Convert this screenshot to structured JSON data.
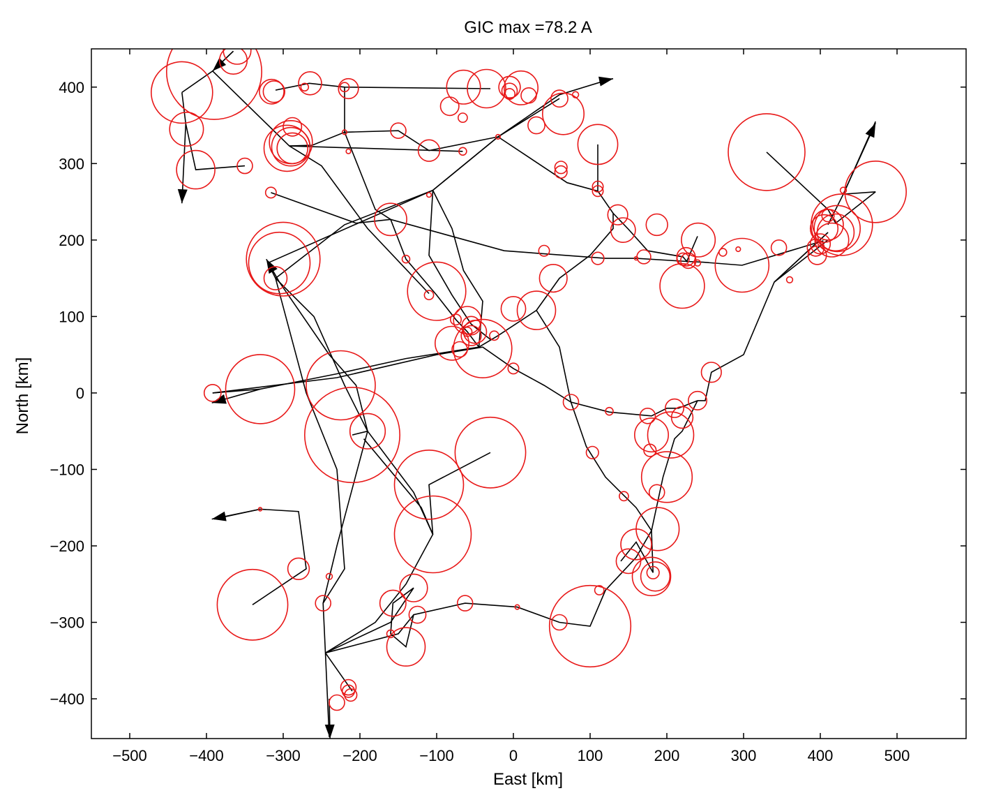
{
  "chart_data": {
    "type": "scatter",
    "title": "GIC max =78.2 A",
    "xlabel": "East [km]",
    "ylabel": "North [km]",
    "xlim": [
      -550,
      590
    ],
    "ylim": [
      -452,
      450
    ],
    "xticks": [
      -500,
      -400,
      -300,
      -200,
      -100,
      0,
      100,
      200,
      300,
      400,
      500
    ],
    "yticks": [
      -400,
      -300,
      -200,
      -100,
      0,
      100,
      200,
      300,
      400
    ],
    "grid": false,
    "line_color": "#000000",
    "circle_color": "#e81818",
    "lines": [
      [
        [
          -432,
          393
        ],
        [
          -427,
          352
        ],
        [
          -414,
          292
        ],
        [
          -350,
          297
        ]
      ],
      [
        [
          -432,
          393
        ],
        [
          -392,
          421
        ],
        [
          -365,
          447
        ]
      ],
      [
        [
          -392,
          421
        ],
        [
          -292,
          323
        ],
        [
          -262,
          324
        ],
        [
          -220,
          341
        ],
        [
          -150,
          343
        ],
        [
          -110,
          317
        ],
        [
          -20,
          335
        ]
      ],
      [
        [
          -292,
          323
        ],
        [
          -66,
          316
        ]
      ],
      [
        [
          -292,
          323
        ],
        [
          -250,
          297
        ],
        [
          -190,
          215
        ],
        [
          -110,
          130
        ]
      ],
      [
        [
          -310,
          396
        ],
        [
          -266,
          405
        ],
        [
          -220,
          400
        ],
        [
          -30,
          398
        ]
      ],
      [
        [
          -220,
          400
        ],
        [
          -220,
          341
        ],
        [
          -180,
          240
        ],
        [
          -160,
          227
        ],
        [
          -140,
          175
        ],
        [
          -100,
          128
        ],
        [
          -75,
          96
        ],
        [
          -60,
          80
        ],
        [
          -45,
          60
        ]
      ],
      [
        [
          -316,
          262
        ],
        [
          -205,
          222
        ],
        [
          -160,
          227
        ],
        [
          -12,
          186
        ],
        [
          120,
          176
        ],
        [
          160,
          176
        ],
        [
          226,
          172
        ],
        [
          247,
          171
        ],
        [
          298,
          167
        ],
        [
          404,
          199
        ]
      ],
      [
        [
          -320,
          170
        ],
        [
          -105,
          265
        ],
        [
          -20,
          335
        ],
        [
          60,
          385
        ]
      ],
      [
        [
          -310,
          150
        ],
        [
          -220,
          220
        ],
        [
          -105,
          265
        ],
        [
          -20,
          335
        ],
        [
          20,
          360
        ]
      ],
      [
        [
          -20,
          335
        ],
        [
          70,
          275
        ],
        [
          110,
          264
        ],
        [
          130,
          235
        ],
        [
          150,
          214
        ],
        [
          175,
          186
        ],
        [
          221,
          178
        ],
        [
          226,
          172
        ],
        [
          240,
          205
        ]
      ],
      [
        [
          -20,
          335
        ],
        [
          60,
          390
        ],
        [
          125,
          410
        ]
      ],
      [
        [
          -105,
          265
        ],
        [
          -110,
          180
        ],
        [
          -80,
          128
        ],
        [
          -55,
          90
        ],
        [
          -30,
          70
        ]
      ],
      [
        [
          -105,
          265
        ],
        [
          -80,
          215
        ],
        [
          -65,
          160
        ],
        [
          -40,
          120
        ],
        [
          -45,
          60
        ]
      ],
      [
        [
          -320,
          170
        ],
        [
          -310,
          150
        ],
        [
          -260,
          100
        ],
        [
          -220,
          10
        ],
        [
          -190,
          -50
        ]
      ],
      [
        [
          -305,
          145
        ],
        [
          -240,
          50
        ],
        [
          -205,
          10
        ],
        [
          -190,
          -50
        ],
        [
          -130,
          -130
        ],
        [
          -105,
          -185
        ]
      ],
      [
        [
          -392,
          0
        ],
        [
          -330,
          5
        ],
        [
          -230,
          25
        ],
        [
          -140,
          45
        ],
        [
          -45,
          60
        ]
      ],
      [
        [
          -392,
          0
        ],
        [
          -230,
          20
        ],
        [
          -100,
          50
        ],
        [
          -40,
          60
        ],
        [
          0,
          32
        ],
        [
          40,
          10
        ],
        [
          75,
          -12
        ],
        [
          125,
          -25
        ],
        [
          180,
          -30
        ],
        [
          200,
          -20
        ],
        [
          215,
          -20
        ],
        [
          240,
          -10
        ]
      ],
      [
        [
          -45,
          60
        ],
        [
          -20,
          75
        ],
        [
          30,
          108
        ],
        [
          60,
          60
        ],
        [
          75,
          -12
        ],
        [
          95,
          -70
        ],
        [
          120,
          -110
        ],
        [
          145,
          -135
        ],
        [
          160,
          -150
        ],
        [
          180,
          -180
        ],
        [
          195,
          -110
        ],
        [
          210,
          -60
        ],
        [
          220,
          -50
        ],
        [
          240,
          -10
        ]
      ],
      [
        [
          30,
          108
        ],
        [
          60,
          150
        ],
        [
          100,
          180
        ],
        [
          130,
          215
        ],
        [
          130,
          235
        ]
      ],
      [
        [
          110,
          325
        ],
        [
          110,
          264
        ]
      ],
      [
        [
          330,
          315
        ],
        [
          410,
          240
        ],
        [
          420,
          222
        ],
        [
          472,
          263
        ]
      ],
      [
        [
          410,
          210
        ],
        [
          340,
          145
        ],
        [
          300,
          50
        ],
        [
          258,
          27
        ],
        [
          250,
          -10
        ],
        [
          240,
          -10
        ]
      ],
      [
        [
          410,
          210
        ],
        [
          340,
          145
        ],
        [
          410,
          200
        ]
      ],
      [
        [
          410,
          220
        ],
        [
          430,
          260
        ],
        [
          472,
          263
        ]
      ],
      [
        [
          472,
          355
        ],
        [
          430,
          260
        ]
      ],
      [
        [
          -310,
          150
        ],
        [
          -270,
          0
        ],
        [
          -230,
          -100
        ],
        [
          -220,
          -230
        ],
        [
          -248,
          -275
        ],
        [
          -245,
          -340
        ]
      ],
      [
        [
          -190,
          -50
        ],
        [
          -230,
          -200
        ],
        [
          -248,
          -275
        ]
      ],
      [
        [
          -190,
          -50
        ],
        [
          -210,
          -55
        ]
      ],
      [
        [
          -195,
          -60
        ],
        [
          -120,
          -150
        ],
        [
          -105,
          -185
        ],
        [
          -140,
          -250
        ],
        [
          -180,
          -300
        ],
        [
          -245,
          -340
        ]
      ],
      [
        [
          -105,
          -185
        ],
        [
          -110,
          -120
        ],
        [
          -30,
          -78
        ]
      ],
      [
        [
          -330,
          -152
        ],
        [
          -390,
          -165
        ]
      ],
      [
        [
          -330,
          -152
        ],
        [
          -280,
          -155
        ],
        [
          -270,
          -230
        ],
        [
          -340,
          -277
        ]
      ],
      [
        [
          -245,
          -340
        ],
        [
          -240,
          -450
        ]
      ],
      [
        [
          -245,
          -340
        ],
        [
          -160,
          -300
        ],
        [
          -130,
          -255
        ],
        [
          -157,
          -275
        ],
        [
          -160,
          -315
        ],
        [
          -140,
          -332
        ],
        [
          -130,
          -290
        ],
        [
          -63,
          -275
        ],
        [
          5,
          -280
        ],
        [
          60,
          -300
        ],
        [
          100,
          -305
        ],
        [
          120,
          -258
        ],
        [
          160,
          -215
        ],
        [
          180,
          -180
        ],
        [
          182,
          -235
        ],
        [
          160,
          -195
        ],
        [
          140,
          -220
        ]
      ],
      [
        [
          -245,
          -340
        ],
        [
          -210,
          -390
        ]
      ],
      [
        [
          -245,
          -340
        ],
        [
          -150,
          -315
        ],
        [
          -130,
          -290
        ]
      ]
    ],
    "arrows": [
      [
        [
          -427,
          352
        ],
        [
          -432,
          248
        ]
      ],
      [
        [
          -365,
          447
        ],
        [
          -392,
          421
        ]
      ],
      [
        [
          125,
          410
        ],
        [
          130,
          411
        ]
      ],
      [
        [
          -305,
          145
        ],
        [
          -322,
          175
        ]
      ],
      [
        [
          -330,
          5
        ],
        [
          -393,
          -13
        ]
      ],
      [
        [
          -330,
          -152
        ],
        [
          -393,
          -165
        ]
      ],
      [
        [
          -240,
          -400
        ],
        [
          -239,
          -452
        ]
      ],
      [
        [
          430,
          260
        ],
        [
          472,
          353
        ]
      ]
    ],
    "circles": [
      [
        -390,
        420,
        62
      ],
      [
        -360,
        448,
        18
      ],
      [
        -365,
        435,
        18
      ],
      [
        -432,
        393,
        40
      ],
      [
        -426,
        345,
        22
      ],
      [
        -414,
        292,
        25
      ],
      [
        -350,
        297,
        10
      ],
      [
        -315,
        394,
        16
      ],
      [
        -312,
        394,
        14
      ],
      [
        -290,
        328,
        28
      ],
      [
        -290,
        322,
        25
      ],
      [
        -295,
        320,
        30
      ],
      [
        -288,
        320,
        20
      ],
      [
        -288,
        348,
        12
      ],
      [
        -265,
        405,
        15
      ],
      [
        -272,
        400,
        5
      ],
      [
        -220,
        400,
        6
      ],
      [
        -215,
        398,
        13
      ],
      [
        -220,
        341,
        3
      ],
      [
        -215,
        316,
        3
      ],
      [
        -150,
        343,
        10
      ],
      [
        -110,
        317,
        14
      ],
      [
        -66,
        316,
        5
      ],
      [
        -66,
        360,
        6
      ],
      [
        -65,
        400,
        22
      ],
      [
        -35,
        398,
        25
      ],
      [
        -83,
        375,
        12
      ],
      [
        -110,
        259,
        3
      ],
      [
        10,
        399,
        22
      ],
      [
        -5,
        400,
        14
      ],
      [
        -5,
        395,
        10
      ],
      [
        -5,
        391,
        7
      ],
      [
        20,
        389,
        10
      ],
      [
        -20,
        335,
        3
      ],
      [
        30,
        350,
        11
      ],
      [
        60,
        385,
        11
      ],
      [
        65,
        365,
        27
      ],
      [
        81,
        390,
        4
      ],
      [
        110,
        325,
        26
      ],
      [
        110,
        270,
        7
      ],
      [
        110,
        264,
        7
      ],
      [
        62,
        295,
        8
      ],
      [
        62,
        289,
        8
      ],
      [
        -316,
        262,
        7
      ],
      [
        -160,
        227,
        21
      ],
      [
        -140,
        175,
        5
      ],
      [
        -110,
        128,
        6
      ],
      [
        -100,
        133,
        38
      ],
      [
        -60,
        95,
        18
      ],
      [
        -55,
        88,
        12
      ],
      [
        -50,
        80,
        15
      ],
      [
        -55,
        75,
        13
      ],
      [
        -60,
        80,
        6
      ],
      [
        -75,
        96,
        7
      ],
      [
        -80,
        65,
        22
      ],
      [
        -70,
        57,
        10
      ],
      [
        -40,
        58,
        38
      ],
      [
        -25,
        75,
        6
      ],
      [
        0,
        32,
        7
      ],
      [
        0,
        110,
        16
      ],
      [
        30,
        108,
        25
      ],
      [
        40,
        186,
        7
      ],
      [
        52,
        150,
        18
      ],
      [
        75,
        -12,
        10
      ],
      [
        110,
        176,
        8
      ],
      [
        125,
        -24,
        5
      ],
      [
        136,
        233,
        13
      ],
      [
        143,
        213,
        16
      ],
      [
        170,
        178,
        9
      ],
      [
        187,
        220,
        14
      ],
      [
        160,
        176,
        2
      ],
      [
        220,
        140,
        29
      ],
      [
        221,
        175,
        8
      ],
      [
        228,
        173,
        10
      ],
      [
        225,
        178,
        12
      ],
      [
        240,
        170,
        4
      ],
      [
        241,
        200,
        22
      ],
      [
        240,
        -10,
        12
      ],
      [
        258,
        27,
        13
      ],
      [
        273,
        184,
        5
      ],
      [
        298,
        167,
        35
      ],
      [
        293,
        188,
        3
      ],
      [
        330,
        315,
        50
      ],
      [
        346,
        190,
        10
      ],
      [
        360,
        148,
        4
      ],
      [
        394,
        190,
        11
      ],
      [
        396,
        180,
        12
      ],
      [
        400,
        195,
        13
      ],
      [
        405,
        215,
        18
      ],
      [
        410,
        232,
        8
      ],
      [
        410,
        220,
        20
      ],
      [
        415,
        200,
        22
      ],
      [
        420,
        210,
        24
      ],
      [
        422,
        215,
        30
      ],
      [
        428,
        220,
        40
      ],
      [
        430,
        265,
        4
      ],
      [
        472,
        263,
        40
      ],
      [
        -305,
        170,
        40
      ],
      [
        -300,
        175,
        48
      ],
      [
        -310,
        150,
        15
      ],
      [
        -392,
        0,
        11
      ],
      [
        -330,
        5,
        45
      ],
      [
        -225,
        10,
        45
      ],
      [
        -210,
        -55,
        62
      ],
      [
        -190,
        -50,
        23
      ],
      [
        -110,
        -120,
        45
      ],
      [
        -105,
        -185,
        50
      ],
      [
        -30,
        -78,
        46
      ],
      [
        -330,
        -152,
        2
      ],
      [
        -280,
        -230,
        14
      ],
      [
        -340,
        -277,
        46
      ],
      [
        -248,
        -275,
        10
      ],
      [
        -240,
        -240,
        4
      ],
      [
        -157,
        -275,
        17
      ],
      [
        -130,
        -255,
        18
      ],
      [
        -125,
        -290,
        11
      ],
      [
        -160,
        -315,
        5
      ],
      [
        -140,
        -332,
        25
      ],
      [
        -63,
        -275,
        10
      ],
      [
        5,
        -280,
        3
      ],
      [
        60,
        -300,
        10
      ],
      [
        100,
        -305,
        53
      ],
      [
        112,
        -258,
        6
      ],
      [
        103,
        -78,
        8
      ],
      [
        144,
        -135,
        6
      ],
      [
        150,
        -220,
        16
      ],
      [
        160,
        -198,
        20
      ],
      [
        180,
        -240,
        25
      ],
      [
        182,
        -235,
        8
      ],
      [
        185,
        -240,
        19
      ],
      [
        188,
        -178,
        28
      ],
      [
        180,
        -55,
        22
      ],
      [
        175,
        -30,
        10
      ],
      [
        178,
        -75,
        8
      ],
      [
        205,
        -55,
        30
      ],
      [
        200,
        -110,
        33
      ],
      [
        187,
        -130,
        10
      ],
      [
        210,
        -20,
        12
      ],
      [
        220,
        -32,
        14
      ],
      [
        -230,
        -405,
        10
      ],
      [
        -215,
        -385,
        10
      ],
      [
        -215,
        -390,
        8
      ],
      [
        -212,
        -395,
        8
      ]
    ]
  }
}
